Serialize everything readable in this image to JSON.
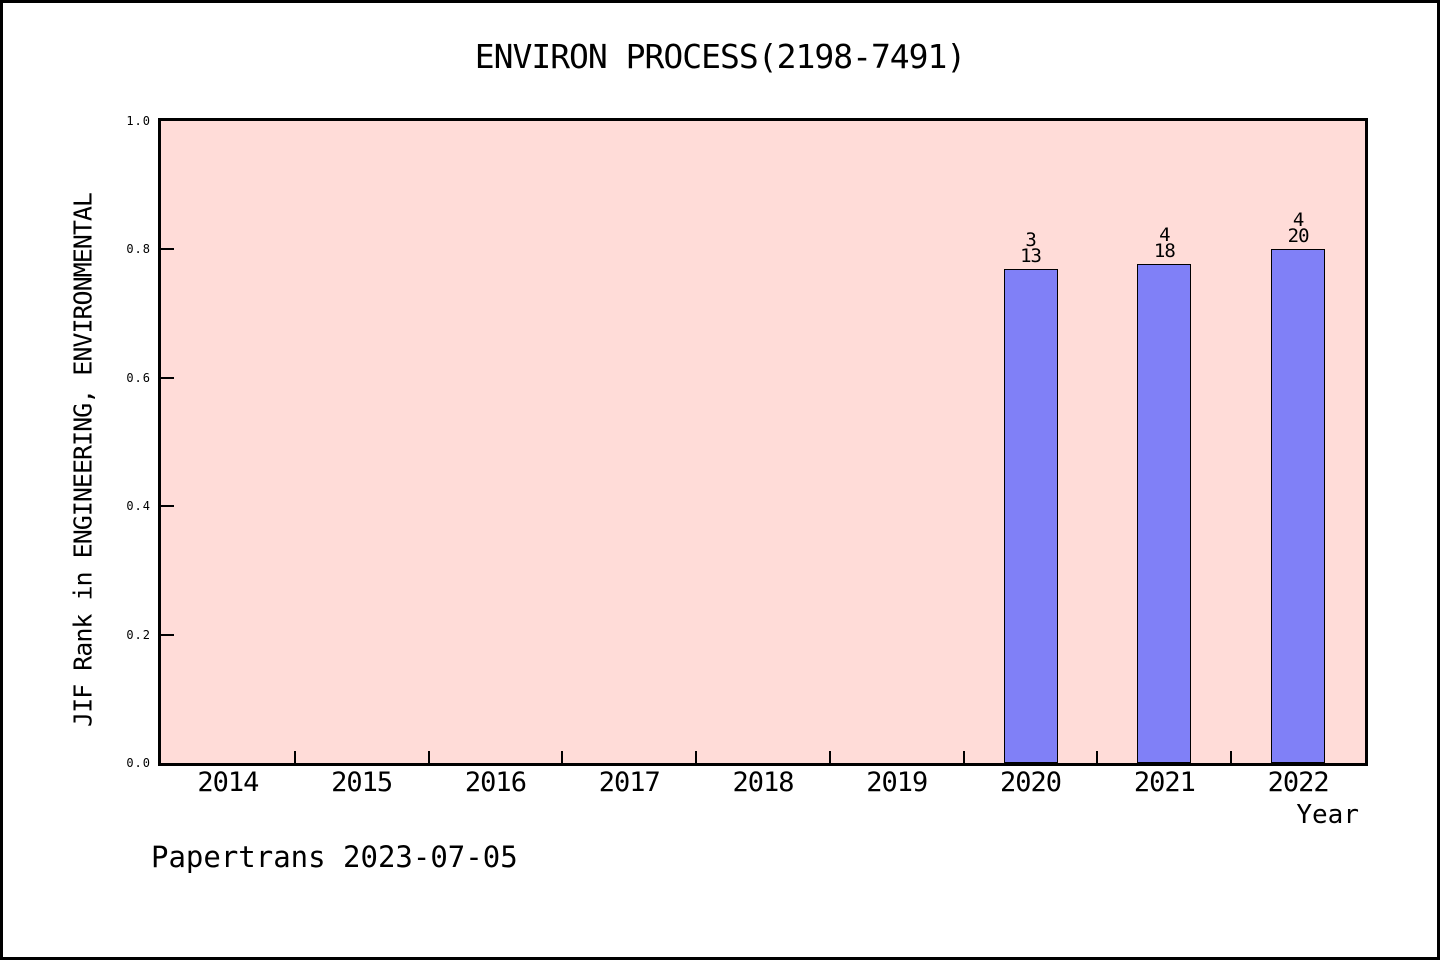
{
  "chart_data": {
    "type": "bar",
    "title": "ENVIRON PROCESS(2198-7491)",
    "xlabel": "Year",
    "ylabel": "JIF Rank in ENGINEERING, ENVIRONMENTAL",
    "categories": [
      "2014",
      "2015",
      "2016",
      "2017",
      "2018",
      "2019",
      "2020",
      "2021",
      "2022"
    ],
    "values": [
      null,
      null,
      null,
      null,
      null,
      null,
      0.769,
      0.778,
      0.8
    ],
    "bar_labels": [
      {
        "category": "2020",
        "rank": "3",
        "total": "13"
      },
      {
        "category": "2021",
        "rank": "4",
        "total": "18"
      },
      {
        "category": "2022",
        "rank": "4",
        "total": "20"
      }
    ],
    "ylim": [
      0.0,
      1.0
    ],
    "yticks": [
      "0.0",
      "0.2",
      "0.4",
      "0.6",
      "0.8",
      "1.0"
    ],
    "grid": false,
    "legend": null,
    "colors": {
      "page_background": "#ffffff",
      "plot_background": "#ffdcd8",
      "bar_fill": "#8080f7",
      "bar_border": "#000000",
      "axis": "#000000",
      "text": "#000000"
    }
  },
  "footer": {
    "text": "Papertrans 2023-07-05"
  }
}
